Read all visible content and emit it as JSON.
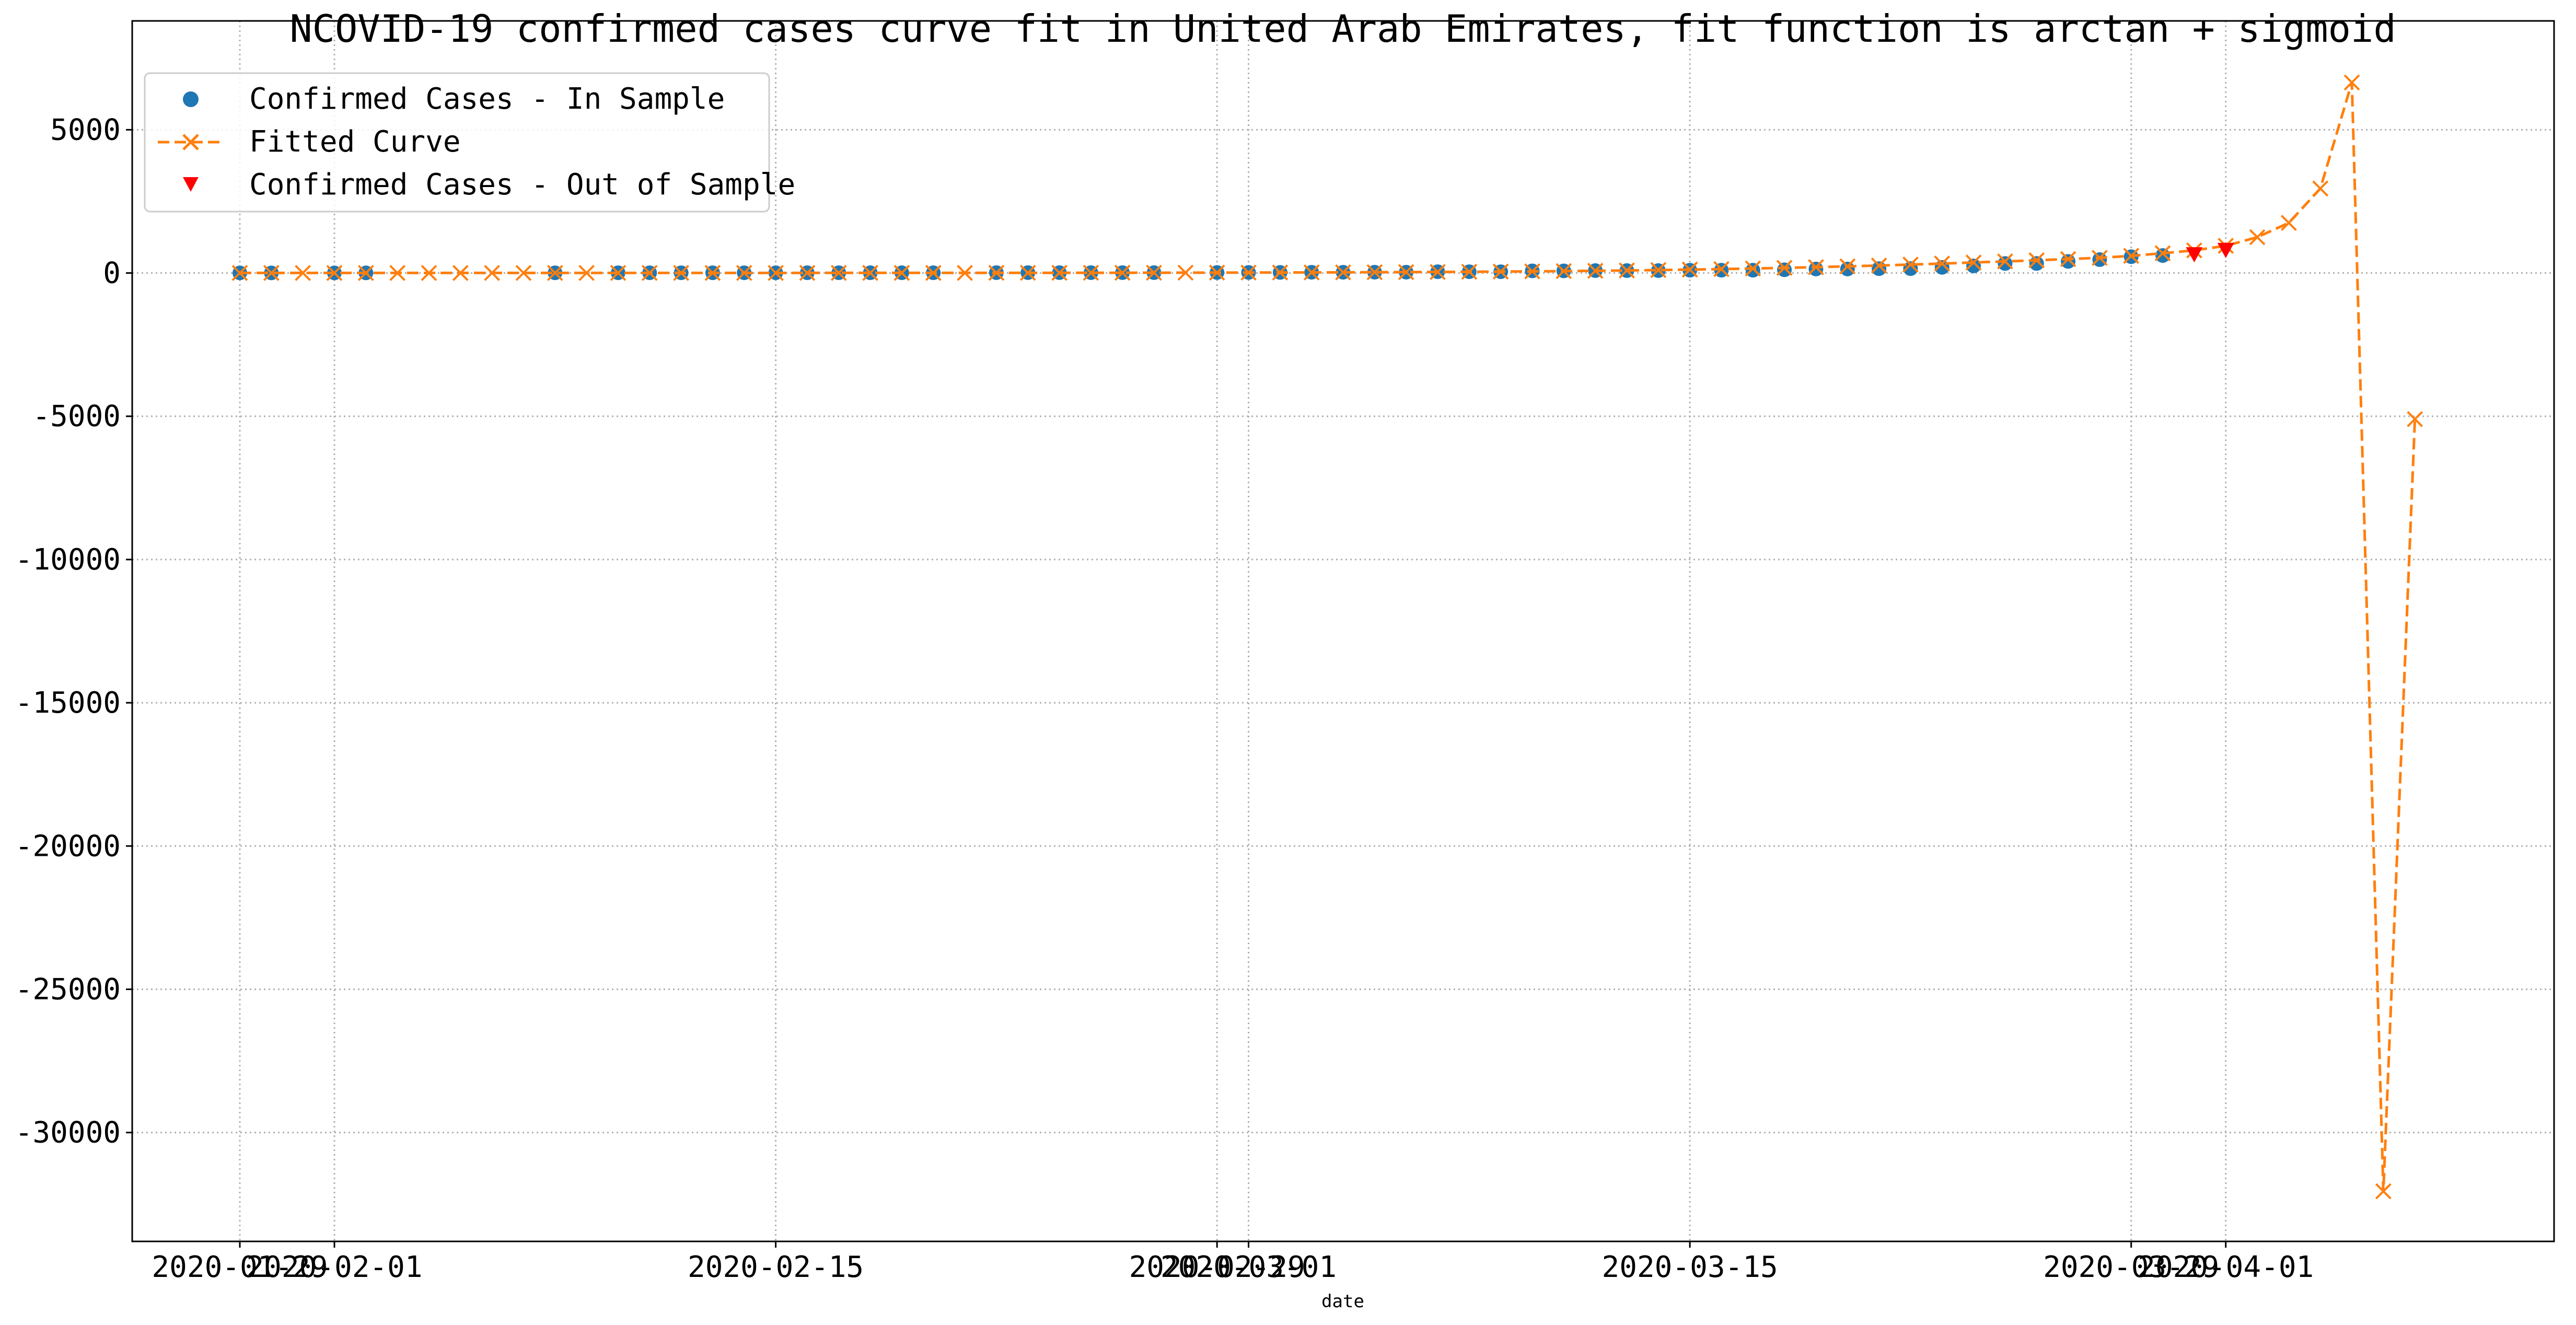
{
  "chart_data": {
    "type": "line",
    "title": "NCOVID-19 confirmed cases curve fit in United Arab Emirates, fit function is arctan + sigmoid",
    "xlabel": "date",
    "ylabel": "",
    "grid": true,
    "legend_placement": "top-left",
    "x_date_start": "2020-01-29",
    "x_date_end": "2020-04-08",
    "ylim": [
      -33800,
      8800
    ],
    "y_ticks": [
      5000,
      0,
      -5000,
      -10000,
      -15000,
      -20000,
      -25000,
      -30000
    ],
    "y_tick_labels": [
      "5000",
      "0",
      "-5000",
      "-10000",
      "-15000",
      "-20000",
      "-25000",
      "-30000"
    ],
    "x_ticks": [
      {
        "date": "2020-01-29",
        "label": "2020-01-29"
      },
      {
        "date": "2020-02-01",
        "label": "2020-02-01"
      },
      {
        "date": "2020-02-15",
        "label": "2020-02-15"
      },
      {
        "date": "2020-02-29",
        "label": "2020-02-29"
      },
      {
        "date": "2020-03-01",
        "label": "2020-03-01"
      },
      {
        "date": "2020-03-15",
        "label": "2020-03-15"
      },
      {
        "date": "2020-03-29",
        "label": "2020-03-29"
      },
      {
        "date": "2020-04-01",
        "label": "2020-04-01"
      }
    ],
    "series": [
      {
        "name": "Confirmed Cases - In Sample",
        "marker": "circle",
        "color": "#1f77b4",
        "points": [
          [
            "2020-01-29",
            4
          ],
          [
            "2020-01-30",
            4
          ],
          [
            "2020-02-01",
            4
          ],
          [
            "2020-02-02",
            5
          ],
          [
            "2020-02-08",
            7
          ],
          [
            "2020-02-10",
            8
          ],
          [
            "2020-02-11",
            8
          ],
          [
            "2020-02-12",
            8
          ],
          [
            "2020-02-13",
            8
          ],
          [
            "2020-02-14",
            8
          ],
          [
            "2020-02-15",
            8
          ],
          [
            "2020-02-16",
            9
          ],
          [
            "2020-02-17",
            9
          ],
          [
            "2020-02-18",
            9
          ],
          [
            "2020-02-19",
            9
          ],
          [
            "2020-02-20",
            9
          ],
          [
            "2020-02-22",
            13
          ],
          [
            "2020-02-23",
            13
          ],
          [
            "2020-02-24",
            13
          ],
          [
            "2020-02-25",
            13
          ],
          [
            "2020-02-26",
            13
          ],
          [
            "2020-02-27",
            13
          ],
          [
            "2020-02-29",
            19
          ],
          [
            "2020-03-01",
            21
          ],
          [
            "2020-03-02",
            21
          ],
          [
            "2020-03-03",
            27
          ],
          [
            "2020-03-04",
            27
          ],
          [
            "2020-03-05",
            29
          ],
          [
            "2020-03-06",
            29
          ],
          [
            "2020-03-07",
            45
          ],
          [
            "2020-03-08",
            45
          ],
          [
            "2020-03-09",
            45
          ],
          [
            "2020-03-10",
            74
          ],
          [
            "2020-03-11",
            74
          ],
          [
            "2020-03-12",
            85
          ],
          [
            "2020-03-13",
            85
          ],
          [
            "2020-03-14",
            85
          ],
          [
            "2020-03-15",
            98
          ],
          [
            "2020-03-16",
            98
          ],
          [
            "2020-03-17",
            98
          ],
          [
            "2020-03-18",
            113
          ],
          [
            "2020-03-19",
            140
          ],
          [
            "2020-03-20",
            140
          ],
          [
            "2020-03-21",
            153
          ],
          [
            "2020-03-22",
            153
          ],
          [
            "2020-03-23",
            198
          ],
          [
            "2020-03-24",
            248
          ],
          [
            "2020-03-25",
            333
          ],
          [
            "2020-03-26",
            333
          ],
          [
            "2020-03-27",
            405
          ],
          [
            "2020-03-28",
            468
          ],
          [
            "2020-03-29",
            570
          ],
          [
            "2020-03-30",
            611
          ]
        ]
      },
      {
        "name": "Fitted Curve",
        "marker": "x",
        "color": "#ff7f0e",
        "points": [
          [
            "2020-01-29",
            2
          ],
          [
            "2020-01-30",
            2
          ],
          [
            "2020-01-31",
            2
          ],
          [
            "2020-02-01",
            2
          ],
          [
            "2020-02-02",
            2
          ],
          [
            "2020-02-03",
            2
          ],
          [
            "2020-02-04",
            2
          ],
          [
            "2020-02-05",
            2
          ],
          [
            "2020-02-06",
            3
          ],
          [
            "2020-02-07",
            3
          ],
          [
            "2020-02-08",
            3
          ],
          [
            "2020-02-09",
            3
          ],
          [
            "2020-02-10",
            3
          ],
          [
            "2020-02-11",
            3
          ],
          [
            "2020-02-12",
            3
          ],
          [
            "2020-02-13",
            3
          ],
          [
            "2020-02-14",
            3
          ],
          [
            "2020-02-15",
            3
          ],
          [
            "2020-02-16",
            4
          ],
          [
            "2020-02-17",
            4
          ],
          [
            "2020-02-18",
            4
          ],
          [
            "2020-02-19",
            4
          ],
          [
            "2020-02-20",
            5
          ],
          [
            "2020-02-21",
            5
          ],
          [
            "2020-02-22",
            6
          ],
          [
            "2020-02-23",
            6
          ],
          [
            "2020-02-24",
            7
          ],
          [
            "2020-02-25",
            8
          ],
          [
            "2020-02-26",
            9
          ],
          [
            "2020-02-27",
            10
          ],
          [
            "2020-02-28",
            12
          ],
          [
            "2020-02-29",
            13
          ],
          [
            "2020-03-01",
            15
          ],
          [
            "2020-03-02",
            18
          ],
          [
            "2020-03-03",
            20
          ],
          [
            "2020-03-04",
            24
          ],
          [
            "2020-03-05",
            28
          ],
          [
            "2020-03-06",
            32
          ],
          [
            "2020-03-07",
            37
          ],
          [
            "2020-03-08",
            43
          ],
          [
            "2020-03-09",
            50
          ],
          [
            "2020-03-10",
            58
          ],
          [
            "2020-03-11",
            67
          ],
          [
            "2020-03-12",
            78
          ],
          [
            "2020-03-13",
            90
          ],
          [
            "2020-03-14",
            104
          ],
          [
            "2020-03-15",
            120
          ],
          [
            "2020-03-16",
            138
          ],
          [
            "2020-03-17",
            158
          ],
          [
            "2020-03-18",
            180
          ],
          [
            "2020-03-19",
            205
          ],
          [
            "2020-03-20",
            232
          ],
          [
            "2020-03-21",
            262
          ],
          [
            "2020-03-22",
            295
          ],
          [
            "2020-03-23",
            330
          ],
          [
            "2020-03-24",
            367
          ],
          [
            "2020-03-25",
            405
          ],
          [
            "2020-03-26",
            445
          ],
          [
            "2020-03-27",
            487
          ],
          [
            "2020-03-28",
            530
          ],
          [
            "2020-03-29",
            600
          ],
          [
            "2020-03-30",
            690
          ],
          [
            "2020-03-31",
            790
          ],
          [
            "2020-04-01",
            950
          ],
          [
            "2020-04-02",
            1250
          ],
          [
            "2020-04-03",
            1750
          ],
          [
            "2020-04-04",
            2950
          ],
          [
            "2020-04-05",
            6650
          ],
          [
            "2020-04-06",
            -32050
          ],
          [
            "2020-04-07",
            -5100
          ]
        ]
      },
      {
        "name": "Confirmed Cases - Out of Sample",
        "marker": "triangle-down",
        "color": "#ff0000",
        "points": [
          [
            "2020-03-31",
            664
          ],
          [
            "2020-04-01",
            814
          ]
        ]
      }
    ]
  }
}
